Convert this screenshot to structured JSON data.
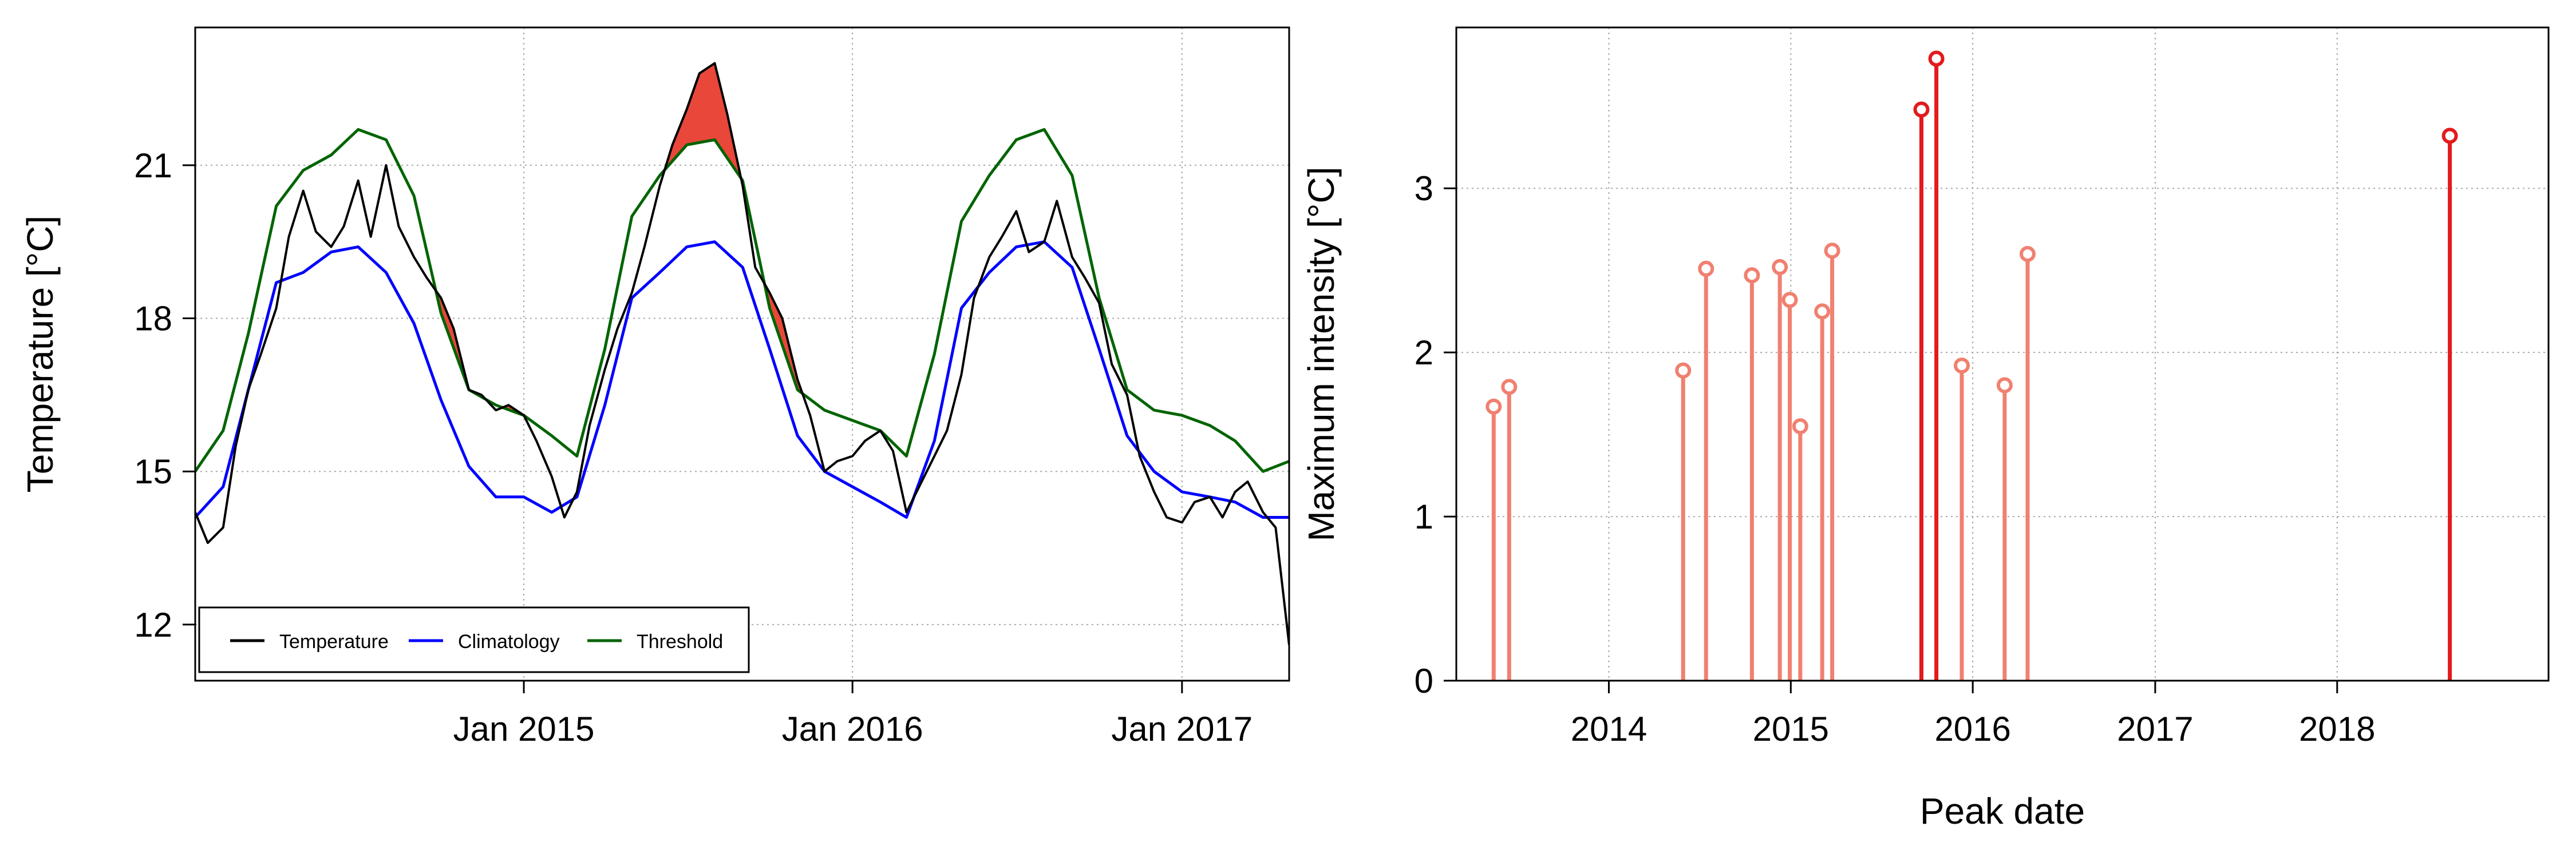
{
  "chart_data": [
    {
      "type": "line",
      "title": "",
      "xlabel": "",
      "ylabel": "Temperature [°C]",
      "x_ticks": [
        "Jan 2015",
        "Jan 2016",
        "Jan 2017"
      ],
      "x_tick_values": [
        "2015-01-01",
        "2016-01-01",
        "2017-01-01"
      ],
      "xlim": [
        "2014-01-01",
        "2017-04-30"
      ],
      "y_ticks": [
        12,
        15,
        18,
        21
      ],
      "ylim": [
        10.9,
        23.7
      ],
      "grid": true,
      "legend_position": "bottom-left",
      "series": [
        {
          "name": "Temperature",
          "color": "#000000",
          "x": [
            "2014-01-01",
            "2014-01-15",
            "2014-02-01",
            "2014-02-15",
            "2014-03-01",
            "2014-03-15",
            "2014-04-01",
            "2014-04-15",
            "2014-05-01",
            "2014-05-15",
            "2014-06-01",
            "2014-06-15",
            "2014-07-01",
            "2014-07-15",
            "2014-08-01",
            "2014-08-15",
            "2014-09-01",
            "2014-09-15",
            "2014-10-01",
            "2014-10-15",
            "2014-11-01",
            "2014-11-15",
            "2014-12-01",
            "2014-12-15",
            "2015-01-01",
            "2015-01-15",
            "2015-02-01",
            "2015-02-15",
            "2015-03-01",
            "2015-03-15",
            "2015-04-01",
            "2015-04-15",
            "2015-05-01",
            "2015-05-15",
            "2015-06-01",
            "2015-06-15",
            "2015-07-01",
            "2015-07-15",
            "2015-08-01",
            "2015-08-15",
            "2015-09-01",
            "2015-09-15",
            "2015-10-01",
            "2015-10-15",
            "2015-11-01",
            "2015-11-15",
            "2015-12-01",
            "2015-12-15",
            "2016-01-01",
            "2016-01-15",
            "2016-02-01",
            "2016-02-15",
            "2016-03-01",
            "2016-03-15",
            "2016-04-01",
            "2016-04-15",
            "2016-05-01",
            "2016-05-15",
            "2016-06-01",
            "2016-06-15",
            "2016-07-01",
            "2016-07-15",
            "2016-08-01",
            "2016-08-15",
            "2016-09-01",
            "2016-09-15",
            "2016-10-01",
            "2016-10-15",
            "2016-11-01",
            "2016-11-15",
            "2016-12-01",
            "2016-12-15",
            "2017-01-01",
            "2017-01-15",
            "2017-02-01",
            "2017-02-15",
            "2017-03-01",
            "2017-03-15",
            "2017-04-01",
            "2017-04-15",
            "2017-04-30"
          ],
          "values": [
            14.2,
            13.6,
            13.9,
            15.5,
            16.6,
            17.3,
            18.2,
            19.6,
            20.5,
            19.7,
            19.4,
            19.8,
            20.7,
            19.6,
            21.0,
            19.8,
            19.2,
            18.8,
            18.4,
            17.8,
            16.6,
            16.5,
            16.2,
            16.3,
            16.1,
            15.6,
            14.9,
            14.1,
            14.6,
            15.9,
            17.0,
            17.8,
            18.5,
            19.4,
            20.6,
            21.4,
            22.1,
            22.8,
            23.0,
            22.0,
            20.6,
            19.0,
            18.5,
            18.0,
            16.8,
            16.1,
            15.0,
            15.2,
            15.3,
            15.6,
            15.8,
            15.4,
            14.2,
            14.7,
            15.3,
            15.8,
            16.9,
            18.4,
            19.2,
            19.6,
            20.1,
            19.3,
            19.5,
            20.3,
            19.2,
            18.8,
            18.3,
            17.1,
            16.5,
            15.3,
            14.6,
            14.1,
            14.0,
            14.4,
            14.5,
            14.1,
            14.6,
            14.8,
            14.2,
            13.9,
            11.6
          ]
        },
        {
          "name": "Climatology",
          "color": "#0000ff",
          "x": [
            "2014-01-01",
            "2014-02-01",
            "2014-03-01",
            "2014-04-01",
            "2014-05-01",
            "2014-06-01",
            "2014-07-01",
            "2014-08-01",
            "2014-09-01",
            "2014-10-01",
            "2014-11-01",
            "2014-12-01",
            "2015-01-01",
            "2015-02-01",
            "2015-03-01",
            "2015-04-01",
            "2015-05-01",
            "2015-06-01",
            "2015-07-01",
            "2015-08-01",
            "2015-09-01",
            "2015-10-01",
            "2015-11-01",
            "2015-12-01",
            "2016-01-01",
            "2016-02-01",
            "2016-03-01",
            "2016-04-01",
            "2016-05-01",
            "2016-06-01",
            "2016-07-01",
            "2016-08-01",
            "2016-09-01",
            "2016-10-01",
            "2016-11-01",
            "2016-12-01",
            "2017-01-01",
            "2017-02-01",
            "2017-03-01",
            "2017-04-01",
            "2017-04-30"
          ],
          "values": [
            14.1,
            14.7,
            16.6,
            18.7,
            18.9,
            19.3,
            19.4,
            18.9,
            17.9,
            16.4,
            15.1,
            14.5,
            14.5,
            14.2,
            14.5,
            16.3,
            18.4,
            18.9,
            19.4,
            19.5,
            19.0,
            17.4,
            15.7,
            15.0,
            14.7,
            14.4,
            14.1,
            15.6,
            18.2,
            18.9,
            19.4,
            19.5,
            19.0,
            17.4,
            15.7,
            15.0,
            14.6,
            14.5,
            14.4,
            14.1,
            14.1
          ]
        },
        {
          "name": "Threshold",
          "color": "#006400",
          "x": [
            "2014-01-01",
            "2014-02-01",
            "2014-03-01",
            "2014-04-01",
            "2014-05-01",
            "2014-06-01",
            "2014-07-01",
            "2014-08-01",
            "2014-09-01",
            "2014-10-01",
            "2014-11-01",
            "2014-12-01",
            "2015-01-01",
            "2015-02-01",
            "2015-03-01",
            "2015-04-01",
            "2015-05-01",
            "2015-06-01",
            "2015-07-01",
            "2015-08-01",
            "2015-09-01",
            "2015-10-01",
            "2015-11-01",
            "2015-12-01",
            "2016-01-01",
            "2016-02-01",
            "2016-03-01",
            "2016-04-01",
            "2016-05-01",
            "2016-06-01",
            "2016-07-01",
            "2016-08-01",
            "2016-09-01",
            "2016-10-01",
            "2016-11-01",
            "2016-12-01",
            "2017-01-01",
            "2017-02-01",
            "2017-03-01",
            "2017-04-01",
            "2017-04-30"
          ],
          "values": [
            15.0,
            15.8,
            17.7,
            20.2,
            20.9,
            21.2,
            21.7,
            21.5,
            20.4,
            18.1,
            16.6,
            16.3,
            16.1,
            15.7,
            15.3,
            17.4,
            20.0,
            20.8,
            21.4,
            21.5,
            20.7,
            18.2,
            16.6,
            16.2,
            16.0,
            15.8,
            15.3,
            17.3,
            19.9,
            20.8,
            21.5,
            21.7,
            20.8,
            18.4,
            16.6,
            16.2,
            16.1,
            15.9,
            15.6,
            15.0,
            15.2
          ]
        }
      ],
      "event_fill_color": "#e8473a"
    },
    {
      "type": "lollipop",
      "title": "",
      "xlabel": "Peak date",
      "ylabel": "Maximum intensity [°C]",
      "x_ticks": [
        "2014",
        "2015",
        "2016",
        "2017",
        "2018"
      ],
      "x_tick_values": [
        "2014-01-01",
        "2015-01-01",
        "2016-01-01",
        "2017-01-01",
        "2018-01-01"
      ],
      "xlim": [
        "2013-03-01",
        "2019-03-01"
      ],
      "y_ticks": [
        0,
        1,
        2,
        3
      ],
      "ylim": [
        0,
        3.98
      ],
      "grid": true,
      "x": [
        "2013-05-15",
        "2013-06-15",
        "2014-05-30",
        "2014-07-15",
        "2014-10-15",
        "2014-12-10",
        "2014-12-30",
        "2015-01-20",
        "2015-03-05",
        "2015-03-25",
        "2015-09-20",
        "2015-10-20",
        "2015-12-10",
        "2016-03-05",
        "2016-04-20",
        "2018-08-15"
      ],
      "values": [
        1.67,
        1.79,
        1.89,
        2.51,
        2.47,
        2.52,
        2.32,
        1.55,
        2.25,
        2.62,
        3.48,
        3.79,
        1.92,
        1.8,
        2.6,
        3.32
      ],
      "highlighted": [
        false,
        false,
        false,
        false,
        false,
        false,
        false,
        false,
        false,
        false,
        true,
        true,
        false,
        false,
        false,
        true
      ],
      "colors": {
        "normal": "#f08070",
        "highlight": "#e31a1c"
      }
    }
  ]
}
